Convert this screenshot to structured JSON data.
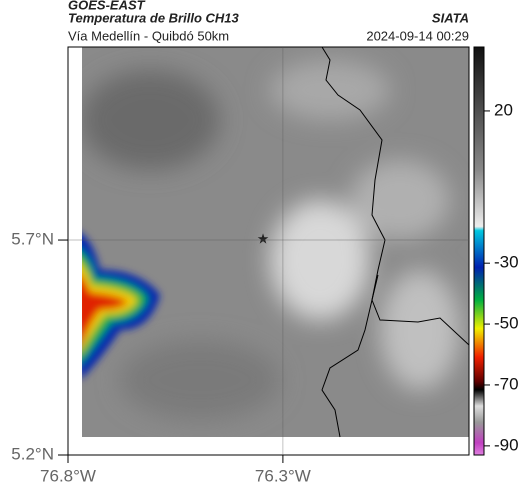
{
  "header": {
    "source": "GOES-EAST",
    "product": "Temperatura de Brillo CH13",
    "agency": "SIATA",
    "route": "Vía Medellín - Quibdó 50km",
    "timestamp": "2024-09-14 00:29"
  },
  "map": {
    "xlim": [
      -76.8,
      -75.867
    ],
    "ylim": [
      5.2,
      6.149
    ],
    "xticks": [
      {
        "value": -76.8,
        "label": "76.8°W"
      },
      {
        "value": -76.3,
        "label": "76.3°W"
      }
    ],
    "yticks": [
      {
        "value": 5.2,
        "label": "5.2°N"
      },
      {
        "value": 5.7,
        "label": "5.7°N"
      }
    ]
  },
  "colorbar": {
    "lim": [
      -93,
      41
    ],
    "ticks": [
      20,
      -30,
      -50,
      -70,
      -90
    ]
  }
}
